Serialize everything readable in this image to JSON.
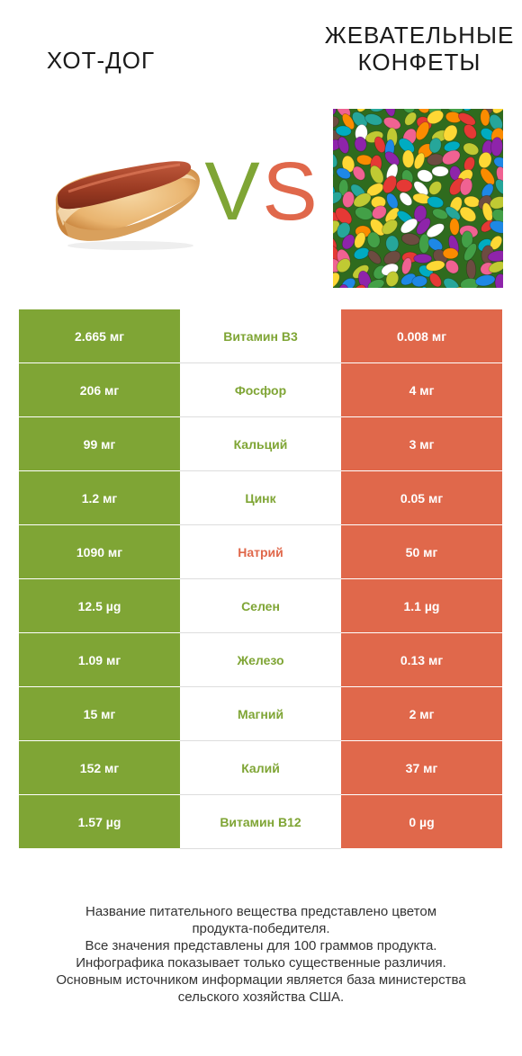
{
  "left_product": {
    "name": "ХОТ-ДОГ"
  },
  "right_product": {
    "name_line1": "ЖЕВАТЕЛЬНЫЕ",
    "name_line2": "КОНФЕТЫ"
  },
  "vs": {
    "v": "V",
    "s": "S"
  },
  "colors": {
    "green": "#7fa535",
    "red": "#e0684b"
  },
  "rows": [
    {
      "left": "2.665 мг",
      "nutrient": "Витамин B3",
      "right": "0.008 мг",
      "winner": "left"
    },
    {
      "left": "206 мг",
      "nutrient": "Фосфор",
      "right": "4 мг",
      "winner": "left"
    },
    {
      "left": "99 мг",
      "nutrient": "Кальций",
      "right": "3 мг",
      "winner": "left"
    },
    {
      "left": "1.2 мг",
      "nutrient": "Цинк",
      "right": "0.05 мг",
      "winner": "left"
    },
    {
      "left": "1090 мг",
      "nutrient": "Натрий",
      "right": "50 мг",
      "winner": "right"
    },
    {
      "left": "12.5 µg",
      "nutrient": "Селен",
      "right": "1.1 µg",
      "winner": "left"
    },
    {
      "left": "1.09 мг",
      "nutrient": "Железо",
      "right": "0.13 мг",
      "winner": "left"
    },
    {
      "left": "15 мг",
      "nutrient": "Магний",
      "right": "2 мг",
      "winner": "left"
    },
    {
      "left": "152 мг",
      "nutrient": "Калий",
      "right": "37 мг",
      "winner": "left"
    },
    {
      "left": "1.57 µg",
      "nutrient": "Витамин B12",
      "right": "0 µg",
      "winner": "left"
    }
  ],
  "footer": {
    "line1": "Название питательного вещества представлено цветом",
    "line2": "продукта-победителя.",
    "line3": "Все значения представлены для 100 граммов продукта.",
    "line4": "Инфографика показывает только существенные различия.",
    "line5": "Основным источником информации является база министерства",
    "line6": "сельского хозяйства США."
  }
}
